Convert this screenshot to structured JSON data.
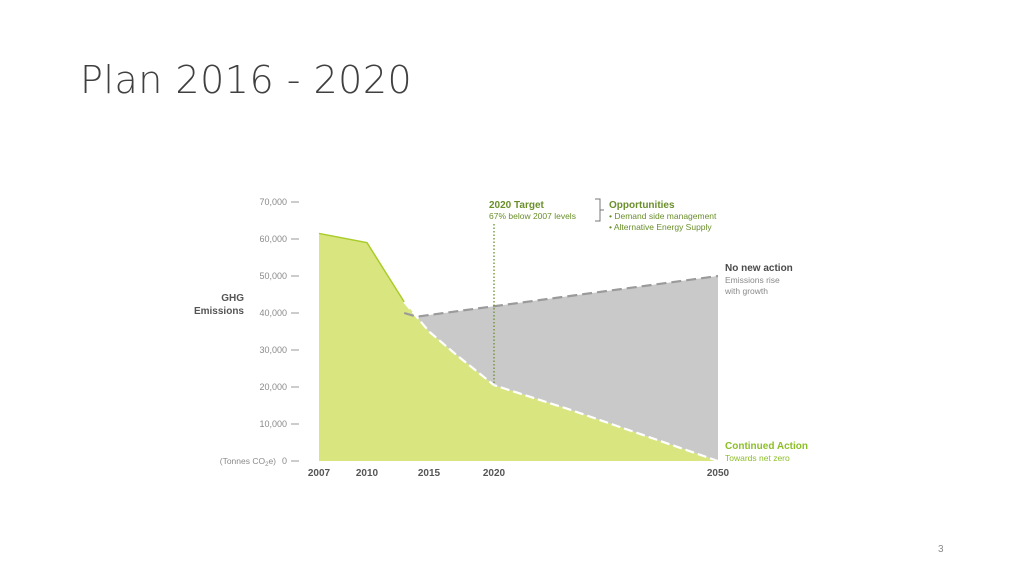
{
  "slide": {
    "title": "Plan 2016 - 2020",
    "page_number": "3"
  },
  "colors": {
    "continued_fill": "#d9e680",
    "continued_line": "#a9cc2a",
    "continued_text": "#8cbf26",
    "no_action_fill": "#c9c9c9",
    "dashed_no_action": "#9a9a9a",
    "dashed_target": "#ffffff",
    "target_marker": "#6a8f2a",
    "axis_text": "#8a8a8a",
    "dark_text": "#4a4a4a"
  },
  "chart_data": {
    "type": "area",
    "ylabel": [
      "GHG",
      "Emissions"
    ],
    "unit_label": {
      "pre": "(Tonnes CO",
      "sub": "2",
      "post": "e)"
    },
    "ylim": [
      0,
      70000
    ],
    "y_ticks": [
      {
        "value": 70000,
        "label": "70,000"
      },
      {
        "value": 60000,
        "label": "60,000"
      },
      {
        "value": 50000,
        "label": "50,000"
      },
      {
        "value": 40000,
        "label": "40,000"
      },
      {
        "value": 30000,
        "label": "30,000"
      },
      {
        "value": 20000,
        "label": "20,000"
      },
      {
        "value": 10000,
        "label": "10,000"
      },
      {
        "value": 0,
        "label": "0"
      }
    ],
    "x_ticks": [
      "2007",
      "2010",
      "2015",
      "2020",
      "2050"
    ],
    "series": [
      {
        "name": "Continued Action",
        "description": "Towards net zero",
        "points": [
          [
            2007,
            61500
          ],
          [
            2010,
            59000
          ],
          [
            2013,
            43000
          ],
          [
            2015,
            35000
          ],
          [
            2017,
            29000
          ],
          [
            2020,
            20500
          ],
          [
            2030,
            14000
          ],
          [
            2040,
            7000
          ],
          [
            2050,
            0
          ]
        ],
        "dashed_from": 2014
      },
      {
        "name": "No new action",
        "description": [
          "Emissions rise",
          "with growth"
        ],
        "points": [
          [
            2013,
            40000
          ],
          [
            2014,
            39000
          ],
          [
            2050,
            50000
          ]
        ]
      }
    ],
    "target": {
      "year": 2020,
      "value": 20500,
      "title": "2020 Target",
      "subtitle": "67% below 2007 levels"
    },
    "opportunities": {
      "title": "Opportunities",
      "items": [
        "• Demand side management",
        "• Alternative Energy Supply"
      ]
    }
  }
}
